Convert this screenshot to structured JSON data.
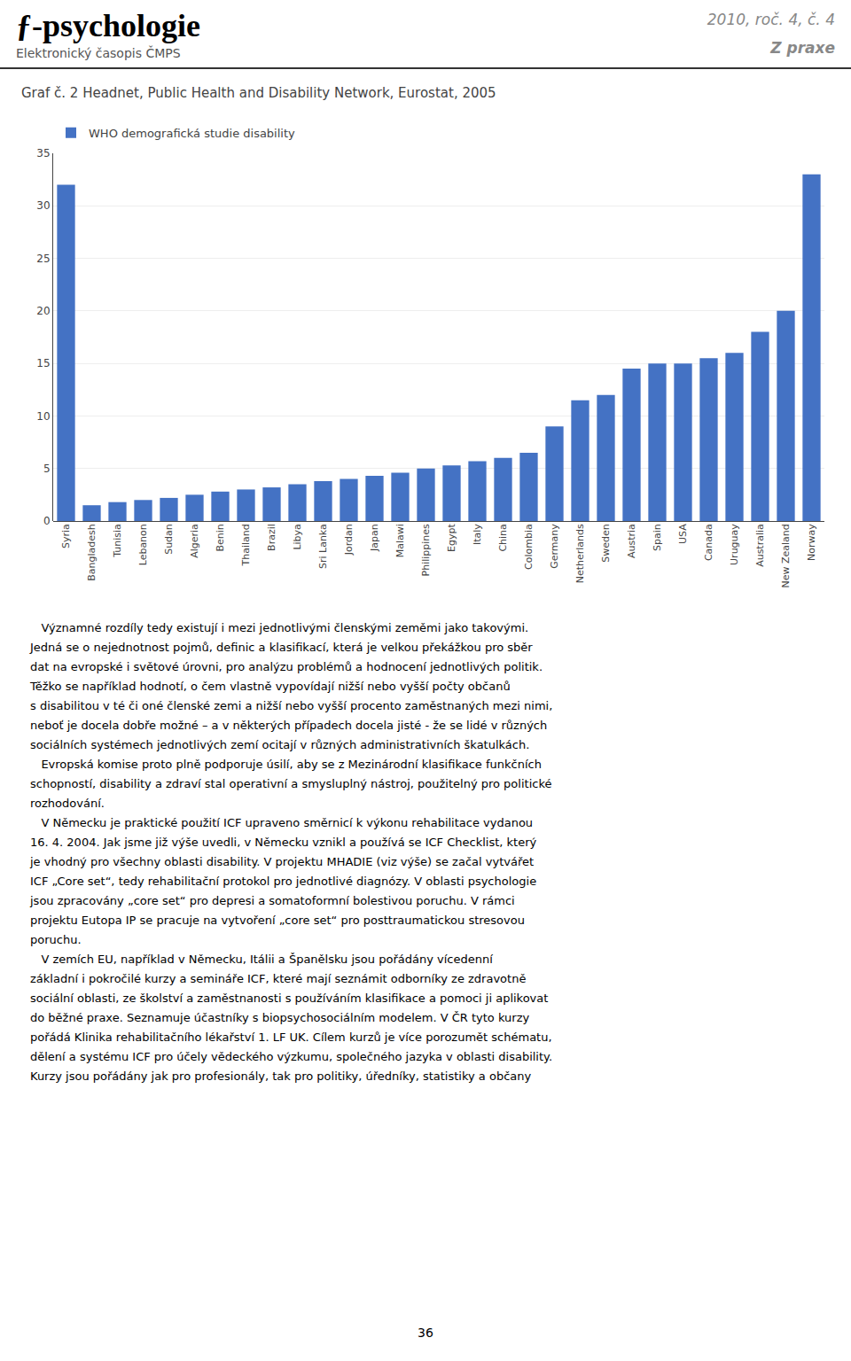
{
  "chart_data": {
    "type": "bar",
    "title": "Graf č. 2 Headnet, Public Health and Disability Network, Eurostat, 2005",
    "categories": [
      "Syria",
      "Bangladesh",
      "Tunisia",
      "Lebanon",
      "Sudan",
      "Algeria",
      "Benin",
      "Thailand",
      "Brazil",
      "Libya",
      "Sri Lanka",
      "Jordan",
      "Japan",
      "Malawi",
      "Philippines",
      "Egypt",
      "Italy",
      "China",
      "Colombia",
      "Germany",
      "Netherlands",
      "Sweden",
      "Austria",
      "Spain",
      "USA",
      "Canada",
      "Uruguay",
      "Australia",
      "New Zealand",
      "Norway"
    ],
    "series": [
      {
        "name": "WHO demografická studie disability",
        "color": "#4472C4",
        "values": [
          32.0,
          1.5,
          1.8,
          2.0,
          2.2,
          2.5,
          2.8,
          3.0,
          3.2,
          3.5,
          3.8,
          4.0,
          4.3,
          4.6,
          5.0,
          5.3,
          5.7,
          6.0,
          6.5,
          9.0,
          11.5,
          12.0,
          14.5,
          15.0,
          15.0,
          15.5,
          16.0,
          18.0,
          20.0,
          33.0
        ]
      }
    ],
    "ylim": [
      0,
      35
    ],
    "yticks": [
      0,
      5,
      10,
      15,
      20,
      25,
      30,
      35
    ]
  },
  "header": [
    "ƒ",
    "-psychologie",
    "Elektronický časopis ČMPS",
    "2010, roč. 4, č. 4",
    "Z praxe"
  ],
  "body": [
    "   Významné rozdíly tedy existují i mezi jednotlivými členskými zeměmi jako takovými.",
    "Jedná se o nejednotnost pojmů, definic a klasifikací, která je velkou překážkou pro sběr",
    "dat na evropské i světové úrovni, pro analýzu problémů a hodnocení jednotlivých politik.",
    "Těžko se například hodnotí, o čem vlastně vypovídají nižší nebo vyšší počty občanů",
    "s disabilitou v té či oné členské zemi a nižší nebo vyšší procento zaměstnaných mezi nimi,",
    "neboť je docela dobře možné – a v některých případech docela jisté - že se lidé v různých",
    "sociálních systémech jednotlivých zemí ocitají v různých administrativních škatulkách.",
    "   Evropská komise proto plně podporuje úsilí, aby se z Mezinárodní klasifikace funkčních",
    "schopností, disability a zdraví stal operativní a smysluplný nástroj, použitelný pro politické",
    "rozhodování.",
    "   V Německu je praktické použití ICF upraveno směrnicí k výkonu rehabilitace vydanou",
    "16. 4. 2004. Jak jsme již výše uvedli, v Německu vznikl a používá se ICF Checklist, který",
    "je vhodný pro všechny oblasti disability. V projektu MHADIE (viz výše) se začal vytvářet",
    "ICF „Core set“, tedy rehabilitační protokol pro jednotlivé diagnózy. V oblasti psychologie",
    "jsou zpracovány „core set“ pro depresi a somatoformní bolestivou poruchu. V rámci",
    "projektu Eutopa IP se pracuje na vytvoření „core set“ pro posttraumatickou stresovou",
    "poruchu.",
    "   V zemích EU, například v Německu, Itálii a Španělsku jsou pořádány vícedenní",
    "základní i pokročilé kurzy a semináře ICF, které mají seznámit odborníky ze zdravotně",
    "sociální oblasti, ze školství a zaměstnanosti s používáním klasifikace a pomoci ji aplikovat",
    "do běžné praxe. Seznamuje účastníky s biopsychosociálním modelem. V ČR tyto kurzy",
    "pořádá Klinika rehabilitačního lékařství 1. LF UK. Cílem kurzů je více porozumět schématu,",
    "dělení a systému ICF pro účely vědeckého výzkumu, společného jazyka v oblasti disability.",
    "Kurzy jsou pořádány jak pro profesionály, tak pro politiky, úředníky, statistiky a občany"
  ],
  "page_number": "36"
}
